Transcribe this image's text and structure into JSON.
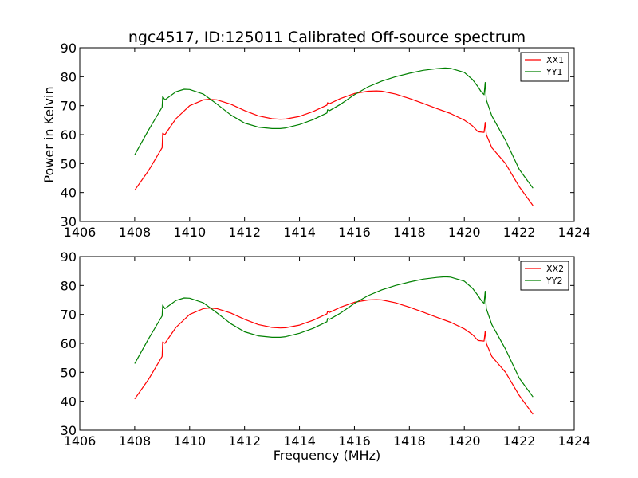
{
  "figure": {
    "title": "ngc4517, ID:125011 Calibrated Off-source spectrum",
    "xlabel": "Frequency (MHz)",
    "ylabel": "Power in Kelvin"
  },
  "chart_data": [
    {
      "type": "line",
      "xlim": [
        1406,
        1424
      ],
      "ylim": [
        30,
        90
      ],
      "xticks": [
        "1406",
        "1408",
        "1410",
        "1412",
        "1414",
        "1416",
        "1418",
        "1420",
        "1422",
        "1424"
      ],
      "yticks": [
        "30",
        "40",
        "50",
        "60",
        "70",
        "80",
        "90"
      ],
      "xlabel": "",
      "ylabel": "Power in Kelvin",
      "legend_position": "top-right",
      "grid": false,
      "series": [
        {
          "name": "XX1",
          "color": "#ff0000",
          "points": [
            [
              1408.0,
              40.8
            ],
            [
              1408.5,
              47.5
            ],
            [
              1409.0,
              55.5
            ],
            [
              1409.02,
              60.5
            ],
            [
              1409.1,
              60.0
            ],
            [
              1409.5,
              65.5
            ],
            [
              1410.0,
              70.0
            ],
            [
              1410.5,
              72.0
            ],
            [
              1410.7,
              72.2
            ],
            [
              1411.0,
              72.0
            ],
            [
              1411.5,
              70.5
            ],
            [
              1412.0,
              68.3
            ],
            [
              1412.5,
              66.5
            ],
            [
              1413.0,
              65.5
            ],
            [
              1413.3,
              65.3
            ],
            [
              1413.5,
              65.4
            ],
            [
              1414.0,
              66.3
            ],
            [
              1414.5,
              68.0
            ],
            [
              1415.0,
              70.2
            ],
            [
              1415.02,
              71.0
            ],
            [
              1415.1,
              70.7
            ],
            [
              1415.5,
              72.5
            ],
            [
              1416.0,
              74.2
            ],
            [
              1416.5,
              75.0
            ],
            [
              1416.8,
              75.1
            ],
            [
              1417.0,
              75.0
            ],
            [
              1417.5,
              74.0
            ],
            [
              1418.0,
              72.5
            ],
            [
              1418.5,
              70.8
            ],
            [
              1419.0,
              69.0
            ],
            [
              1419.5,
              67.3
            ],
            [
              1420.0,
              65.0
            ],
            [
              1420.3,
              63.0
            ],
            [
              1420.5,
              61.0
            ],
            [
              1420.72,
              60.8
            ],
            [
              1420.76,
              64.2
            ],
            [
              1420.8,
              60.0
            ],
            [
              1421.0,
              55.5
            ],
            [
              1421.5,
              50.0
            ],
            [
              1422.0,
              42.0
            ],
            [
              1422.5,
              35.5
            ]
          ]
        },
        {
          "name": "YY1",
          "color": "#008000",
          "points": [
            [
              1408.0,
              53.0
            ],
            [
              1408.5,
              61.5
            ],
            [
              1409.0,
              69.5
            ],
            [
              1409.02,
              73.2
            ],
            [
              1409.1,
              72.0
            ],
            [
              1409.5,
              74.8
            ],
            [
              1409.8,
              75.7
            ],
            [
              1410.0,
              75.6
            ],
            [
              1410.5,
              74.0
            ],
            [
              1411.0,
              70.5
            ],
            [
              1411.5,
              66.8
            ],
            [
              1412.0,
              64.0
            ],
            [
              1412.5,
              62.6
            ],
            [
              1413.0,
              62.1
            ],
            [
              1413.3,
              62.1
            ],
            [
              1413.5,
              62.3
            ],
            [
              1414.0,
              63.5
            ],
            [
              1414.5,
              65.2
            ],
            [
              1415.0,
              67.5
            ],
            [
              1415.02,
              68.6
            ],
            [
              1415.1,
              68.3
            ],
            [
              1415.5,
              70.5
            ],
            [
              1416.0,
              73.8
            ],
            [
              1416.5,
              76.5
            ],
            [
              1417.0,
              78.5
            ],
            [
              1417.5,
              80.0
            ],
            [
              1418.0,
              81.2
            ],
            [
              1418.5,
              82.2
            ],
            [
              1419.0,
              82.8
            ],
            [
              1419.3,
              83.0
            ],
            [
              1419.5,
              82.9
            ],
            [
              1420.0,
              81.5
            ],
            [
              1420.3,
              79.0
            ],
            [
              1420.5,
              76.5
            ],
            [
              1420.6,
              75.0
            ],
            [
              1420.72,
              73.8
            ],
            [
              1420.76,
              78.0
            ],
            [
              1420.8,
              72.0
            ],
            [
              1421.0,
              66.5
            ],
            [
              1421.5,
              58.0
            ],
            [
              1422.0,
              48.0
            ],
            [
              1422.5,
              41.5
            ]
          ]
        }
      ]
    },
    {
      "type": "line",
      "xlim": [
        1406,
        1424
      ],
      "ylim": [
        30,
        90
      ],
      "xticks": [
        "1406",
        "1408",
        "1410",
        "1412",
        "1414",
        "1416",
        "1418",
        "1420",
        "1422",
        "1424"
      ],
      "yticks": [
        "30",
        "40",
        "50",
        "60",
        "70",
        "80",
        "90"
      ],
      "xlabel": "Frequency (MHz)",
      "ylabel": "",
      "legend_position": "top-right",
      "grid": false,
      "series": [
        {
          "name": "XX2",
          "color": "#ff0000",
          "points": [
            [
              1408.0,
              40.8
            ],
            [
              1408.5,
              47.5
            ],
            [
              1409.0,
              55.5
            ],
            [
              1409.02,
              60.5
            ],
            [
              1409.1,
              60.0
            ],
            [
              1409.5,
              65.5
            ],
            [
              1410.0,
              70.0
            ],
            [
              1410.5,
              72.0
            ],
            [
              1410.7,
              72.2
            ],
            [
              1411.0,
              72.0
            ],
            [
              1411.5,
              70.5
            ],
            [
              1412.0,
              68.3
            ],
            [
              1412.5,
              66.5
            ],
            [
              1413.0,
              65.5
            ],
            [
              1413.3,
              65.3
            ],
            [
              1413.5,
              65.4
            ],
            [
              1414.0,
              66.3
            ],
            [
              1414.5,
              68.0
            ],
            [
              1415.0,
              70.2
            ],
            [
              1415.02,
              71.0
            ],
            [
              1415.1,
              70.7
            ],
            [
              1415.5,
              72.5
            ],
            [
              1416.0,
              74.2
            ],
            [
              1416.5,
              75.0
            ],
            [
              1416.8,
              75.1
            ],
            [
              1417.0,
              75.0
            ],
            [
              1417.5,
              74.0
            ],
            [
              1418.0,
              72.5
            ],
            [
              1418.5,
              70.8
            ],
            [
              1419.0,
              69.0
            ],
            [
              1419.5,
              67.3
            ],
            [
              1420.0,
              65.0
            ],
            [
              1420.3,
              63.0
            ],
            [
              1420.5,
              61.0
            ],
            [
              1420.72,
              60.8
            ],
            [
              1420.76,
              64.2
            ],
            [
              1420.8,
              60.0
            ],
            [
              1421.0,
              55.5
            ],
            [
              1421.5,
              50.0
            ],
            [
              1422.0,
              42.0
            ],
            [
              1422.5,
              35.5
            ]
          ]
        },
        {
          "name": "YY2",
          "color": "#008000",
          "points": [
            [
              1408.0,
              53.0
            ],
            [
              1408.5,
              61.5
            ],
            [
              1409.0,
              69.5
            ],
            [
              1409.02,
              73.2
            ],
            [
              1409.1,
              72.0
            ],
            [
              1409.5,
              74.8
            ],
            [
              1409.8,
              75.7
            ],
            [
              1410.0,
              75.6
            ],
            [
              1410.5,
              74.0
            ],
            [
              1411.0,
              70.5
            ],
            [
              1411.5,
              66.8
            ],
            [
              1412.0,
              64.0
            ],
            [
              1412.5,
              62.6
            ],
            [
              1413.0,
              62.1
            ],
            [
              1413.3,
              62.1
            ],
            [
              1413.5,
              62.3
            ],
            [
              1414.0,
              63.5
            ],
            [
              1414.5,
              65.2
            ],
            [
              1415.0,
              67.5
            ],
            [
              1415.02,
              68.6
            ],
            [
              1415.1,
              68.3
            ],
            [
              1415.5,
              70.5
            ],
            [
              1416.0,
              73.8
            ],
            [
              1416.5,
              76.5
            ],
            [
              1417.0,
              78.5
            ],
            [
              1417.5,
              80.0
            ],
            [
              1418.0,
              81.2
            ],
            [
              1418.5,
              82.2
            ],
            [
              1419.0,
              82.8
            ],
            [
              1419.3,
              83.0
            ],
            [
              1419.5,
              82.9
            ],
            [
              1420.0,
              81.5
            ],
            [
              1420.3,
              79.0
            ],
            [
              1420.5,
              76.5
            ],
            [
              1420.6,
              75.0
            ],
            [
              1420.72,
              73.8
            ],
            [
              1420.76,
              78.0
            ],
            [
              1420.8,
              72.0
            ],
            [
              1421.0,
              66.5
            ],
            [
              1421.5,
              58.0
            ],
            [
              1422.0,
              48.0
            ],
            [
              1422.5,
              41.5
            ]
          ]
        }
      ]
    }
  ]
}
